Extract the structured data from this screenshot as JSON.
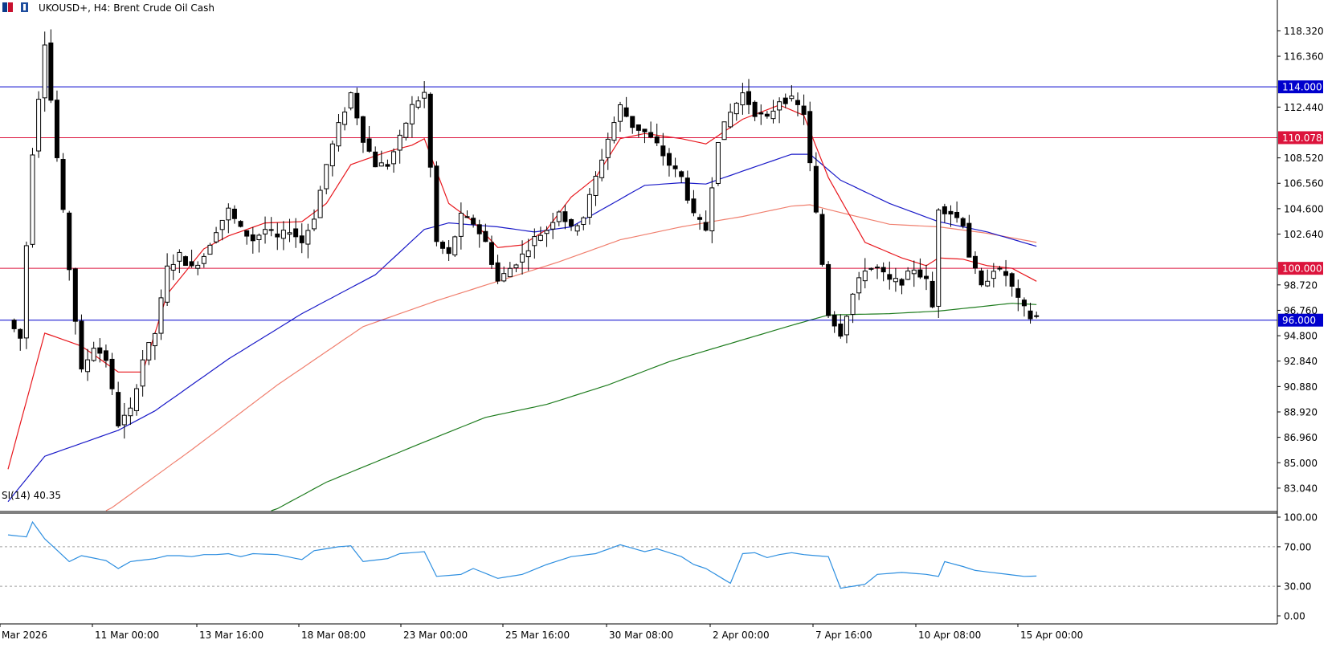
{
  "header": {
    "title": "UKOUSD+, H4:  Brent Crude Oil Cash",
    "icon": "chart-window-icon"
  },
  "colors": {
    "background": "#ffffff",
    "grid": "#c8c8c8",
    "candle_outline": "#000000",
    "ma_fast": "#e8171d",
    "ma_mid": "#1a1ac8",
    "ma_slow": "#f07f6e",
    "ma_long": "#1e7c1e",
    "rsi_line": "#2e8fe0",
    "hline_red": "#dc143c",
    "hline_blue": "#0000cd"
  },
  "chart_data": [
    {
      "type": "candlestick",
      "title": "UKOUSD+, H4:  Brent Crude Oil Cash",
      "ylim": [
        81.3,
        120.7
      ],
      "yticks": [
        "118.320",
        "116.360",
        "112.440",
        "108.520",
        "106.560",
        "104.600",
        "102.640",
        "98.720",
        "96.760",
        "94.800",
        "92.840",
        "90.880",
        "88.920",
        "86.960",
        "85.000",
        "83.040"
      ],
      "ytick_values": [
        118.32,
        116.36,
        112.44,
        108.52,
        106.56,
        104.6,
        102.64,
        98.72,
        96.76,
        94.8,
        92.84,
        90.88,
        88.92,
        86.96,
        85.0,
        83.04
      ],
      "xticks": [
        "Mar 2026",
        "11 Mar 00:00",
        "13 Mar 16:00",
        "18 Mar 08:00",
        "23 Mar 00:00",
        "25 Mar 16:00",
        "30 Mar 08:00",
        "2 Apr 00:00",
        "7 Apr 16:00",
        "10 Apr 08:00",
        "15 Apr 00:00"
      ],
      "horizontal_lines": [
        {
          "value": 114.0,
          "label": "114.000",
          "color": "#0000cd"
        },
        {
          "value": 110.078,
          "label": "110.078",
          "color": "#dc143c"
        },
        {
          "value": 100.0,
          "label": "100.000",
          "color": "#dc143c"
        },
        {
          "value": 96.0,
          "label": "96.000",
          "color": "#0000cd"
        }
      ],
      "anchors": [
        [
          0,
          96
        ],
        [
          2,
          94.6
        ],
        [
          4,
          109
        ],
        [
          6,
          117.5
        ],
        [
          8,
          108.5
        ],
        [
          10,
          100
        ],
        [
          12,
          92
        ],
        [
          14,
          94
        ],
        [
          16,
          93
        ],
        [
          18,
          88
        ],
        [
          20,
          89
        ],
        [
          22,
          93
        ],
        [
          24,
          95
        ],
        [
          26,
          100
        ],
        [
          28,
          101
        ],
        [
          30,
          100
        ],
        [
          32,
          101
        ],
        [
          34,
          103
        ],
        [
          36,
          104.5
        ],
        [
          38,
          103
        ],
        [
          40,
          102.2
        ],
        [
          42,
          103
        ],
        [
          44,
          102.3
        ],
        [
          46,
          103
        ],
        [
          48,
          102
        ],
        [
          50,
          104
        ],
        [
          52,
          108
        ],
        [
          54,
          111
        ],
        [
          56,
          113.5
        ],
        [
          58,
          110
        ],
        [
          60,
          108
        ],
        [
          62,
          108
        ],
        [
          64,
          110
        ],
        [
          66,
          112.5
        ],
        [
          68,
          113.5
        ],
        [
          70,
          102
        ],
        [
          72,
          101
        ],
        [
          74,
          104
        ],
        [
          76,
          103.5
        ],
        [
          78,
          102
        ],
        [
          80,
          99
        ],
        [
          82,
          100
        ],
        [
          84,
          101
        ],
        [
          86,
          102.3
        ],
        [
          88,
          103
        ],
        [
          90,
          104.5
        ],
        [
          92,
          103
        ],
        [
          94,
          104
        ],
        [
          96,
          107
        ],
        [
          98,
          110
        ],
        [
          100,
          112.5
        ],
        [
          102,
          111
        ],
        [
          104,
          110.5
        ],
        [
          106,
          109.5
        ],
        [
          108,
          108
        ],
        [
          110,
          107
        ],
        [
          112,
          104
        ],
        [
          114,
          103
        ],
        [
          116,
          110
        ],
        [
          118,
          112
        ],
        [
          120,
          113.5
        ],
        [
          122,
          112
        ],
        [
          124,
          111.5
        ],
        [
          126,
          113
        ],
        [
          128,
          113
        ],
        [
          130,
          112
        ],
        [
          131,
          108
        ],
        [
          134,
          96.5
        ],
        [
          136,
          95
        ],
        [
          138,
          98
        ],
        [
          140,
          100
        ],
        [
          142,
          100
        ],
        [
          144,
          99
        ],
        [
          146,
          99
        ],
        [
          148,
          100
        ],
        [
          150,
          99
        ],
        [
          151,
          97
        ],
        [
          152,
          104.7
        ],
        [
          154,
          104.3
        ],
        [
          156,
          103.5
        ],
        [
          157,
          101
        ],
        [
          159,
          98.5
        ],
        [
          161,
          100
        ],
        [
          163,
          99.5
        ],
        [
          165,
          97.5
        ],
        [
          167,
          96.2
        ],
        [
          168,
          96.3
        ]
      ],
      "ma_fast_anchors": [
        [
          0,
          84.5
        ],
        [
          6,
          95
        ],
        [
          12,
          94
        ],
        [
          18,
          92
        ],
        [
          22,
          92
        ],
        [
          26,
          98
        ],
        [
          32,
          101.5
        ],
        [
          36,
          102.5
        ],
        [
          42,
          103.5
        ],
        [
          48,
          103.6
        ],
        [
          52,
          105
        ],
        [
          56,
          108
        ],
        [
          62,
          109
        ],
        [
          66,
          109.5
        ],
        [
          68,
          110
        ],
        [
          72,
          105
        ],
        [
          76,
          103.6
        ],
        [
          80,
          101.6
        ],
        [
          84,
          101.8
        ],
        [
          88,
          103
        ],
        [
          92,
          105.5
        ],
        [
          96,
          107
        ],
        [
          100,
          110
        ],
        [
          104,
          110.4
        ],
        [
          110,
          110
        ],
        [
          114,
          109.6
        ],
        [
          120,
          111.5
        ],
        [
          126,
          112.6
        ],
        [
          130,
          111.8
        ],
        [
          134,
          107
        ],
        [
          140,
          102
        ],
        [
          146,
          100.8
        ],
        [
          150,
          100.2
        ],
        [
          152,
          100.8
        ],
        [
          156,
          100.7
        ],
        [
          160,
          100.2
        ],
        [
          164,
          100
        ],
        [
          168,
          99
        ]
      ],
      "ma_mid_anchors": [
        [
          0,
          82
        ],
        [
          6,
          85.5
        ],
        [
          12,
          86.5
        ],
        [
          18,
          87.5
        ],
        [
          24,
          89
        ],
        [
          36,
          93
        ],
        [
          48,
          96.5
        ],
        [
          60,
          99.5
        ],
        [
          68,
          103
        ],
        [
          72,
          103.5
        ],
        [
          80,
          103.2
        ],
        [
          86,
          102.8
        ],
        [
          92,
          103.2
        ],
        [
          98,
          104.8
        ],
        [
          104,
          106.4
        ],
        [
          110,
          106.6
        ],
        [
          114,
          106.5
        ],
        [
          120,
          107.5
        ],
        [
          128,
          108.8
        ],
        [
          131,
          108.8
        ],
        [
          136,
          106.8
        ],
        [
          144,
          105
        ],
        [
          152,
          103.6
        ],
        [
          160,
          102.8
        ],
        [
          168,
          101.7
        ]
      ],
      "ma_slow_anchors": [
        [
          16,
          81.2
        ],
        [
          30,
          86
        ],
        [
          44,
          91
        ],
        [
          58,
          95.5
        ],
        [
          70,
          97.5
        ],
        [
          80,
          99
        ],
        [
          90,
          100.5
        ],
        [
          100,
          102.2
        ],
        [
          110,
          103.2
        ],
        [
          120,
          104
        ],
        [
          128,
          104.8
        ],
        [
          131,
          104.9
        ],
        [
          136,
          104.3
        ],
        [
          144,
          103.4
        ],
        [
          152,
          103.2
        ],
        [
          160,
          102.7
        ],
        [
          168,
          102
        ]
      ],
      "ma_long_anchors": [
        [
          43,
          81.2
        ],
        [
          52,
          83.5
        ],
        [
          68,
          86.6
        ],
        [
          78,
          88.5
        ],
        [
          88,
          89.5
        ],
        [
          98,
          91
        ],
        [
          108,
          92.8
        ],
        [
          118,
          94.2
        ],
        [
          128,
          95.6
        ],
        [
          134,
          96.4
        ],
        [
          144,
          96.5
        ],
        [
          152,
          96.7
        ],
        [
          158,
          97
        ],
        [
          164,
          97.3
        ],
        [
          168,
          97.2
        ]
      ]
    },
    {
      "type": "line",
      "title": "SI(14) 40.35",
      "ylim": [
        0,
        100
      ],
      "yticks": [
        "100.00",
        "70.00",
        "30.00",
        "0.00"
      ],
      "ytick_values": [
        100,
        70,
        30,
        0
      ],
      "levels": [
        70,
        30
      ],
      "anchors": [
        [
          0,
          82
        ],
        [
          3,
          80
        ],
        [
          4,
          95
        ],
        [
          6,
          78
        ],
        [
          10,
          55
        ],
        [
          12,
          61
        ],
        [
          16,
          56
        ],
        [
          18,
          48
        ],
        [
          20,
          55
        ],
        [
          24,
          58
        ],
        [
          26,
          61
        ],
        [
          28,
          61
        ],
        [
          30,
          60
        ],
        [
          32,
          62
        ],
        [
          34,
          62
        ],
        [
          36,
          63
        ],
        [
          38,
          60
        ],
        [
          40,
          63
        ],
        [
          44,
          62
        ],
        [
          48,
          57
        ],
        [
          50,
          66
        ],
        [
          54,
          70
        ],
        [
          56,
          71
        ],
        [
          58,
          55
        ],
        [
          62,
          58
        ],
        [
          64,
          63
        ],
        [
          68,
          65
        ],
        [
          70,
          40
        ],
        [
          74,
          42
        ],
        [
          76,
          48
        ],
        [
          80,
          38
        ],
        [
          84,
          42
        ],
        [
          88,
          52
        ],
        [
          92,
          60
        ],
        [
          96,
          63
        ],
        [
          100,
          72
        ],
        [
          104,
          65
        ],
        [
          106,
          68
        ],
        [
          110,
          60
        ],
        [
          112,
          52
        ],
        [
          114,
          48
        ],
        [
          118,
          33
        ],
        [
          120,
          63
        ],
        [
          122,
          64
        ],
        [
          124,
          59
        ],
        [
          126,
          62
        ],
        [
          128,
          64
        ],
        [
          130,
          62
        ],
        [
          134,
          60
        ],
        [
          136,
          28
        ],
        [
          140,
          32
        ],
        [
          142,
          42
        ],
        [
          146,
          44
        ],
        [
          150,
          42
        ],
        [
          152,
          40
        ],
        [
          153,
          55
        ],
        [
          156,
          50
        ],
        [
          158,
          46
        ],
        [
          162,
          43
        ],
        [
          166,
          40
        ],
        [
          168,
          40.35
        ]
      ]
    }
  ]
}
